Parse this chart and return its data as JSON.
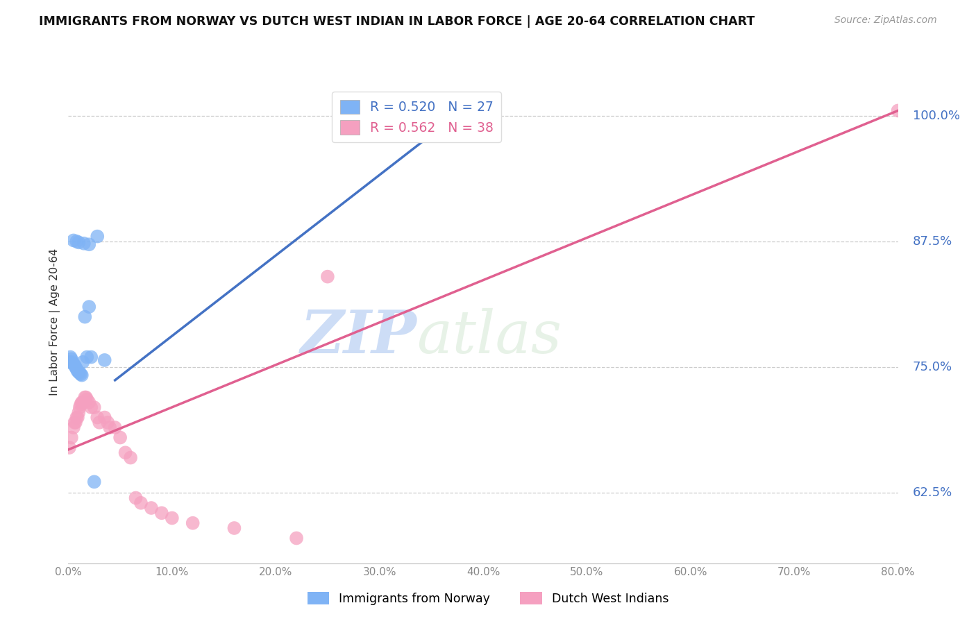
{
  "title": "IMMIGRANTS FROM NORWAY VS DUTCH WEST INDIAN IN LABOR FORCE | AGE 20-64 CORRELATION CHART",
  "source": "Source: ZipAtlas.com",
  "ylabel": "In Labor Force | Age 20-64",
  "xlim": [
    0.0,
    0.8
  ],
  "ylim": [
    0.555,
    1.035
  ],
  "yticks": [
    0.625,
    0.75,
    0.875,
    1.0
  ],
  "xticks": [
    0.0,
    0.1,
    0.2,
    0.3,
    0.4,
    0.5,
    0.6,
    0.7,
    0.8
  ],
  "blue_R": 0.52,
  "blue_N": 27,
  "pink_R": 0.562,
  "pink_N": 38,
  "norway_x": [
    0.001,
    0.002,
    0.003,
    0.004,
    0.005,
    0.006,
    0.007,
    0.008,
    0.009,
    0.01,
    0.011,
    0.012,
    0.013,
    0.014,
    0.016,
    0.018,
    0.02,
    0.022,
    0.025,
    0.028,
    0.035,
    0.38,
    0.005,
    0.008,
    0.01,
    0.015,
    0.02
  ],
  "norway_y": [
    0.755,
    0.76,
    0.758,
    0.755,
    0.753,
    0.752,
    0.75,
    0.748,
    0.746,
    0.745,
    0.744,
    0.743,
    0.742,
    0.755,
    0.8,
    0.76,
    0.81,
    0.76,
    0.636,
    0.88,
    0.757,
    1.005,
    0.876,
    0.875,
    0.874,
    0.873,
    0.872
  ],
  "dutch_x": [
    0.001,
    0.003,
    0.005,
    0.006,
    0.007,
    0.008,
    0.009,
    0.01,
    0.011,
    0.012,
    0.013,
    0.014,
    0.015,
    0.016,
    0.017,
    0.018,
    0.02,
    0.022,
    0.025,
    0.028,
    0.03,
    0.035,
    0.038,
    0.04,
    0.045,
    0.05,
    0.055,
    0.06,
    0.065,
    0.07,
    0.08,
    0.09,
    0.1,
    0.12,
    0.16,
    0.22,
    0.25,
    0.8
  ],
  "dutch_y": [
    0.67,
    0.68,
    0.69,
    0.695,
    0.695,
    0.7,
    0.7,
    0.705,
    0.71,
    0.713,
    0.715,
    0.715,
    0.715,
    0.72,
    0.72,
    0.718,
    0.715,
    0.71,
    0.71,
    0.7,
    0.695,
    0.7,
    0.695,
    0.69,
    0.69,
    0.68,
    0.665,
    0.66,
    0.62,
    0.615,
    0.61,
    0.605,
    0.6,
    0.595,
    0.59,
    0.58,
    0.84,
    1.005
  ],
  "blue_color": "#7FB3F5",
  "pink_color": "#F5A0C0",
  "blue_line_color": "#4472C4",
  "pink_line_color": "#E06090",
  "watermark_zip": "ZIP",
  "watermark_atlas": "atlas",
  "bg_color": "#FFFFFF",
  "grid_color": "#CCCCCC",
  "blue_line_x0": 0.045,
  "blue_line_y0": 0.737,
  "blue_line_x1": 0.38,
  "blue_line_y1": 1.005,
  "pink_line_x0": 0.0,
  "pink_line_y0": 0.668,
  "pink_line_x1": 0.8,
  "pink_line_y1": 1.005
}
